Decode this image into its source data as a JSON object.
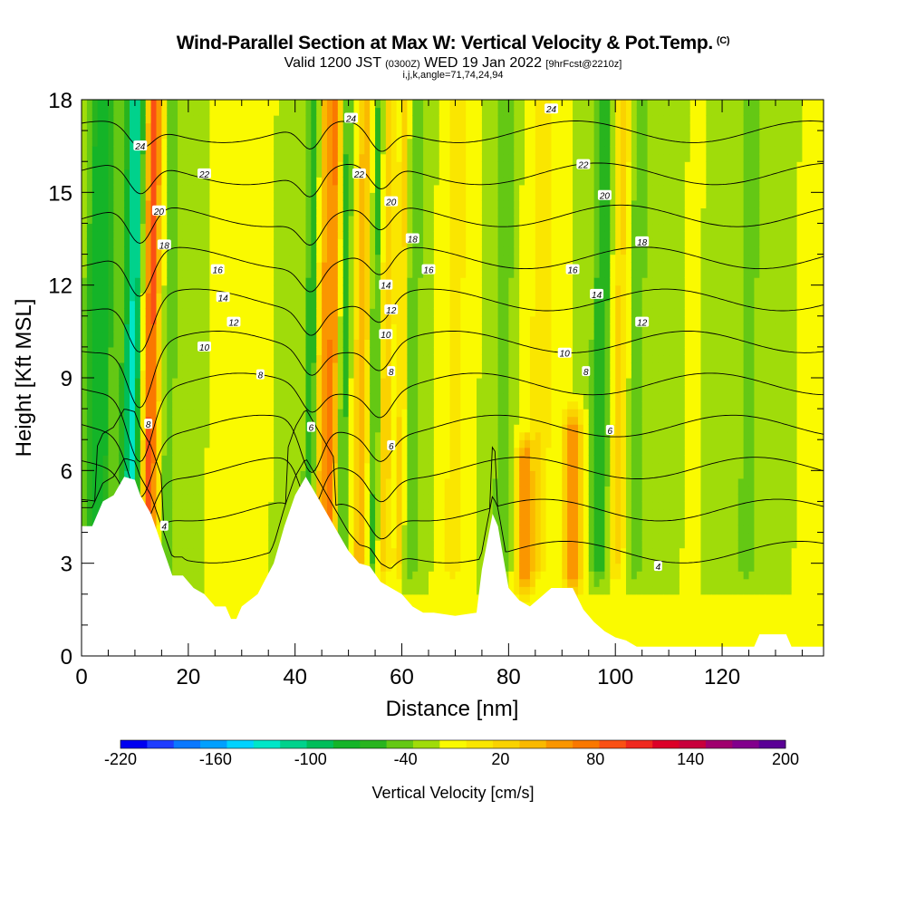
{
  "title": {
    "main": "Wind-Parallel Section at Max W: Vertical Velocity & Pot.Temp.",
    "copyright": "(C)",
    "valid_prefix": "Valid 1200 JST",
    "valid_zulu": "(0300Z)",
    "valid_date": "WED 19 Jan 2022",
    "forecast": "[9hrFcst@2210z]",
    "indices": "i,j,k,angle=71,74,24,94"
  },
  "chart_data": {
    "type": "heatmap",
    "xlabel": "Distance [nm]",
    "ylabel": "Height [Kft MSL]",
    "xlim": [
      0,
      139
    ],
    "ylim": [
      0,
      18
    ],
    "x_ticks": [
      0,
      20,
      40,
      60,
      80,
      100,
      120
    ],
    "y_ticks": [
      0,
      3,
      6,
      9,
      12,
      15,
      18
    ],
    "colorbar": {
      "label": "Vertical Velocity [cm/s]",
      "range": [
        -220,
        200
      ],
      "step": 20,
      "tick_labels": [
        -220,
        -160,
        -100,
        -40,
        20,
        80,
        140,
        200
      ],
      "colors": [
        "#0000f0",
        "#1e3cff",
        "#0a78ff",
        "#00a0ff",
        "#00d2ff",
        "#00e6c8",
        "#00d28c",
        "#00be5a",
        "#14b428",
        "#28b41e",
        "#64c814",
        "#a0dc0a",
        "#fafa00",
        "#fae600",
        "#fad200",
        "#fab900",
        "#fa9600",
        "#fa7800",
        "#fa5014",
        "#f0281e",
        "#dc0028",
        "#c8003c",
        "#a0006e",
        "#82008c",
        "#5a0096"
      ]
    },
    "background_w": 20,
    "updrafts": [
      {
        "x": 12.8,
        "half_width": 1.6,
        "w": 150
      },
      {
        "x": 11.0,
        "half_width": 1.2,
        "w": 40
      },
      {
        "x": 45.0,
        "half_width": 1.2,
        "w": 60
      },
      {
        "x": 47.0,
        "half_width": 1.5,
        "w": 100
      },
      {
        "x": 52.5,
        "half_width": 1.5,
        "w": 70
      },
      {
        "x": 57.0,
        "half_width": 1.2,
        "w": 60
      },
      {
        "x": 60.0,
        "half_width": 1.0,
        "w": 50
      },
      {
        "x": 70.0,
        "half_width": 1.5,
        "w": 40
      },
      {
        "x": 86.0,
        "half_width": 2.0,
        "w": 40
      },
      {
        "x": 100.5,
        "half_width": 1.8,
        "w": 50
      },
      {
        "x": 83.0,
        "half_width": 1.5,
        "w": 90,
        "zmin": 2.5,
        "zmax": 6.5
      },
      {
        "x": 92.0,
        "half_width": 1.8,
        "w": 90,
        "zmin": 2.5,
        "zmax": 7.5
      }
    ],
    "downdrafts": [
      {
        "x": 10.0,
        "half_width": 2.2,
        "w": -140
      },
      {
        "x": 2.0,
        "half_width": 2.0,
        "w": -40
      },
      {
        "x": 4.0,
        "half_width": 2.0,
        "w": -60
      },
      {
        "x": 16.5,
        "half_width": 1.2,
        "w": -40
      },
      {
        "x": 43.0,
        "half_width": 1.2,
        "w": -60
      },
      {
        "x": 49.0,
        "half_width": 1.2,
        "w": -60
      },
      {
        "x": 55.0,
        "half_width": 1.2,
        "w": -50
      },
      {
        "x": 62.0,
        "half_width": 1.5,
        "w": -40
      },
      {
        "x": 79.0,
        "half_width": 1.5,
        "w": -40
      },
      {
        "x": 97.5,
        "half_width": 2.0,
        "w": -60
      },
      {
        "x": 104.0,
        "half_width": 1.5,
        "w": -40
      },
      {
        "x": 125.0,
        "half_width": 1.5,
        "w": -40
      }
    ],
    "terrain": [
      [
        0,
        4.2
      ],
      [
        2,
        4.2
      ],
      [
        4,
        5.0
      ],
      [
        6,
        5.2
      ],
      [
        8,
        5.8
      ],
      [
        10,
        5.7
      ],
      [
        11,
        5.2
      ],
      [
        13,
        4.6
      ],
      [
        15,
        3.6
      ],
      [
        17,
        2.6
      ],
      [
        19,
        2.6
      ],
      [
        21,
        2.2
      ],
      [
        23,
        2.0
      ],
      [
        25,
        1.6
      ],
      [
        27,
        1.6
      ],
      [
        28,
        1.2
      ],
      [
        29,
        1.2
      ],
      [
        30,
        1.6
      ],
      [
        33,
        2.0
      ],
      [
        36,
        3.0
      ],
      [
        38,
        4.2
      ],
      [
        40,
        5.2
      ],
      [
        42,
        5.8
      ],
      [
        44,
        5.2
      ],
      [
        46,
        4.6
      ],
      [
        48,
        4.0
      ],
      [
        50,
        3.4
      ],
      [
        52,
        3.0
      ],
      [
        54,
        2.9
      ],
      [
        56,
        2.4
      ],
      [
        58,
        2.2
      ],
      [
        60,
        2.0
      ],
      [
        62,
        1.6
      ],
      [
        64,
        1.4
      ],
      [
        66,
        1.4
      ],
      [
        70,
        1.3
      ],
      [
        74,
        1.4
      ],
      [
        75,
        2.8
      ],
      [
        77,
        4.6
      ],
      [
        78,
        4.2
      ],
      [
        80,
        2.2
      ],
      [
        82,
        1.8
      ],
      [
        84,
        1.6
      ],
      [
        86,
        1.9
      ],
      [
        88,
        2.2
      ],
      [
        92,
        2.2
      ],
      [
        94,
        1.5
      ],
      [
        96,
        1.1
      ],
      [
        98,
        0.8
      ],
      [
        100,
        0.6
      ],
      [
        102,
        0.5
      ],
      [
        104,
        0.3
      ],
      [
        106,
        0.3
      ],
      [
        120,
        0.3
      ],
      [
        126,
        0.3
      ],
      [
        127,
        0.7
      ],
      [
        132,
        0.7
      ],
      [
        133,
        0.3
      ],
      [
        139,
        0.3
      ]
    ],
    "contour_levels": [
      4,
      6,
      8,
      10,
      12,
      14,
      16,
      18,
      20,
      22,
      24
    ],
    "contour_labels": [
      {
        "text": "24",
        "x": 11,
        "y": 16.5
      },
      {
        "text": "22",
        "x": 23,
        "y": 15.6
      },
      {
        "text": "20",
        "x": 14.5,
        "y": 14.4
      },
      {
        "text": "18",
        "x": 15.5,
        "y": 13.3
      },
      {
        "text": "16",
        "x": 25.5,
        "y": 12.5
      },
      {
        "text": "14",
        "x": 26.5,
        "y": 11.6
      },
      {
        "text": "12",
        "x": 28.5,
        "y": 10.8
      },
      {
        "text": "10",
        "x": 23,
        "y": 10.0
      },
      {
        "text": "8",
        "x": 33.5,
        "y": 9.1
      },
      {
        "text": "8",
        "x": 12.5,
        "y": 7.5
      },
      {
        "text": "6",
        "x": 43,
        "y": 7.4
      },
      {
        "text": "4",
        "x": 15.5,
        "y": 4.2
      },
      {
        "text": "24",
        "x": 50.5,
        "y": 17.4
      },
      {
        "text": "22",
        "x": 52,
        "y": 15.6
      },
      {
        "text": "20",
        "x": 58,
        "y": 14.7
      },
      {
        "text": "18",
        "x": 62,
        "y": 13.5
      },
      {
        "text": "16",
        "x": 65,
        "y": 12.5
      },
      {
        "text": "14",
        "x": 57,
        "y": 12.0
      },
      {
        "text": "12",
        "x": 58,
        "y": 11.2
      },
      {
        "text": "10",
        "x": 57,
        "y": 10.4
      },
      {
        "text": "8",
        "x": 58,
        "y": 9.2
      },
      {
        "text": "6",
        "x": 58,
        "y": 6.8
      },
      {
        "text": "24",
        "x": 88,
        "y": 17.7
      },
      {
        "text": "22",
        "x": 94,
        "y": 15.9
      },
      {
        "text": "20",
        "x": 98,
        "y": 14.9
      },
      {
        "text": "18",
        "x": 105,
        "y": 13.4
      },
      {
        "text": "16",
        "x": 92,
        "y": 12.5
      },
      {
        "text": "14",
        "x": 96.5,
        "y": 11.7
      },
      {
        "text": "12",
        "x": 105,
        "y": 10.8
      },
      {
        "text": "10",
        "x": 90.5,
        "y": 9.8
      },
      {
        "text": "8",
        "x": 94.5,
        "y": 9.2
      },
      {
        "text": "6",
        "x": 99,
        "y": 7.3
      },
      {
        "text": "4",
        "x": 108,
        "y": 2.9
      }
    ]
  }
}
